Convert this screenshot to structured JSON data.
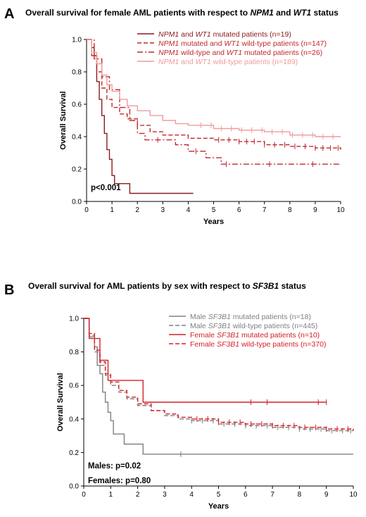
{
  "chart_data": [
    {
      "panel_label": "A",
      "type": "line",
      "step": true,
      "title_parts": [
        {
          "text": "Overall survival for female AML patients with respect to ",
          "italic": false
        },
        {
          "text": "NPM1",
          "italic": true
        },
        {
          "text": " and ",
          "italic": false
        },
        {
          "text": "WT1",
          "italic": true
        },
        {
          "text": " status",
          "italic": false
        }
      ],
      "xlabel": "Years",
      "ylabel": "Overall Survival",
      "xlim": [
        0,
        10
      ],
      "ylim": [
        0,
        1
      ],
      "xticks": [
        "0",
        "1",
        "2",
        "3",
        "4",
        "5",
        "6",
        "7",
        "8",
        "9",
        "10"
      ],
      "yticks": [
        "0.0",
        "0.2",
        "0.4",
        "0.6",
        "0.8",
        "1.0"
      ],
      "legend_position": "top-right",
      "annotations": [
        "p<0.001"
      ],
      "series": [
        {
          "legend_parts": [
            {
              "text": "NPM1",
              "italic": true
            },
            {
              "text": " and ",
              "italic": false
            },
            {
              "text": "WT1",
              "italic": true
            },
            {
              "text": " mutated patients (n=19)",
              "italic": false
            }
          ],
          "color": "#8b1a1a",
          "dash": "solid",
          "x": [
            0,
            0.2,
            0.3,
            0.4,
            0.5,
            0.6,
            0.7,
            0.8,
            0.9,
            1.0,
            1.1,
            1.3,
            1.7,
            2.4,
            2.5,
            4.2
          ],
          "y": [
            1.0,
            0.95,
            0.9,
            0.74,
            0.63,
            0.53,
            0.42,
            0.32,
            0.26,
            0.16,
            0.11,
            0.11,
            0.05,
            0.05,
            0.05,
            0.05
          ],
          "censor_x": []
        },
        {
          "legend_parts": [
            {
              "text": "NPM1",
              "italic": true
            },
            {
              "text": " mutated and ",
              "italic": false
            },
            {
              "text": "WT1",
              "italic": true
            },
            {
              "text": " wild-type patients (n=147)",
              "italic": false
            }
          ],
          "color": "#c0282d",
          "dash": "6,3",
          "x": [
            0,
            0.2,
            0.4,
            0.6,
            0.8,
            1.0,
            1.3,
            1.6,
            2.0,
            2.5,
            3.0,
            4.0,
            5.0,
            6.0,
            7.0,
            8.0,
            9.0,
            10.0
          ],
          "y": [
            1.0,
            0.9,
            0.8,
            0.7,
            0.63,
            0.58,
            0.54,
            0.51,
            0.47,
            0.43,
            0.41,
            0.39,
            0.38,
            0.37,
            0.35,
            0.34,
            0.33,
            0.32
          ],
          "censor_x": [
            5.2,
            5.6,
            6.0,
            6.3,
            6.6,
            7.0,
            7.4,
            7.8,
            8.2,
            8.6,
            9.0,
            9.3,
            9.6,
            9.9
          ]
        },
        {
          "legend_parts": [
            {
              "text": "NPM1",
              "italic": true
            },
            {
              "text": " wild-type and ",
              "italic": false
            },
            {
              "text": "WT1",
              "italic": true
            },
            {
              "text": " mutated patients (n=26)",
              "italic": false
            }
          ],
          "color": "#c0282d",
          "dash": "8,3,2,3",
          "x": [
            0,
            0.3,
            0.6,
            0.9,
            1.3,
            1.7,
            2.0,
            2.3,
            3.5,
            4.0,
            4.7,
            5.3,
            10.0
          ],
          "y": [
            1.0,
            0.88,
            0.77,
            0.69,
            0.58,
            0.5,
            0.42,
            0.38,
            0.35,
            0.31,
            0.27,
            0.23,
            0.23
          ],
          "censor_x": [
            2.8,
            4.3,
            5.5,
            7.2,
            8.9
          ]
        },
        {
          "legend_parts": [
            {
              "text": "NPM1",
              "italic": true
            },
            {
              "text": " and ",
              "italic": false
            },
            {
              "text": "WT1",
              "italic": true
            },
            {
              "text": " wild-type patients (n=189)",
              "italic": false
            }
          ],
          "color": "#f19a9a",
          "dash": "solid",
          "x": [
            0,
            0.2,
            0.4,
            0.6,
            0.8,
            1.0,
            1.3,
            1.6,
            2.0,
            2.5,
            3.0,
            3.5,
            4.0,
            5.0,
            6.0,
            7.0,
            8.0,
            9.0,
            10.0
          ],
          "y": [
            1.0,
            0.92,
            0.85,
            0.78,
            0.72,
            0.68,
            0.63,
            0.59,
            0.56,
            0.53,
            0.5,
            0.48,
            0.47,
            0.45,
            0.44,
            0.43,
            0.41,
            0.4,
            0.4
          ],
          "censor_x": [
            4.5,
            4.9,
            5.3,
            5.7,
            6.1,
            6.5,
            6.9,
            7.3,
            7.7,
            8.1,
            8.5,
            8.9,
            9.3,
            9.7
          ]
        }
      ]
    },
    {
      "panel_label": "B",
      "type": "line",
      "step": true,
      "title_parts": [
        {
          "text": "Overall survival for AML patients by sex with respect to ",
          "italic": false
        },
        {
          "text": "SF3B1",
          "italic": true
        },
        {
          "text": " status",
          "italic": false
        }
      ],
      "xlabel": "Years",
      "ylabel": "Overall Survival",
      "xlim": [
        0,
        10
      ],
      "ylim": [
        0,
        1
      ],
      "xticks": [
        "0",
        "1",
        "2",
        "3",
        "4",
        "5",
        "6",
        "7",
        "8",
        "9",
        "10"
      ],
      "yticks": [
        "0.0",
        "0.2",
        "0.4",
        "0.6",
        "0.8",
        "1.0"
      ],
      "legend_position": "top-right",
      "annotations": [
        "Males: p=0.02",
        "Females: p=0.80"
      ],
      "series": [
        {
          "legend_parts": [
            {
              "text": "Male ",
              "italic": false
            },
            {
              "text": "SF3B1",
              "italic": true
            },
            {
              "text": " mutated patients (n=18)",
              "italic": false
            }
          ],
          "color": "#808080",
          "dash": "solid",
          "x": [
            0,
            0.2,
            0.4,
            0.5,
            0.6,
            0.7,
            0.8,
            0.9,
            1.0,
            1.1,
            1.5,
            2.2,
            10.0
          ],
          "y": [
            1.0,
            0.89,
            0.83,
            0.72,
            0.67,
            0.56,
            0.5,
            0.44,
            0.39,
            0.31,
            0.25,
            0.19,
            0.19
          ],
          "censor_x": [
            3.6
          ]
        },
        {
          "legend_parts": [
            {
              "text": "Male ",
              "italic": false
            },
            {
              "text": "SF3B1",
              "italic": true
            },
            {
              "text": " wild-type patients (n=445)",
              "italic": false
            }
          ],
          "color": "#808080",
          "dash": "6,3",
          "x": [
            0,
            0.2,
            0.4,
            0.6,
            0.8,
            1.0,
            1.3,
            1.6,
            2.0,
            2.5,
            3.0,
            3.5,
            4.0,
            5.0,
            6.0,
            7.0,
            8.0,
            9.0,
            10.0
          ],
          "y": [
            1.0,
            0.9,
            0.8,
            0.72,
            0.66,
            0.6,
            0.56,
            0.52,
            0.48,
            0.45,
            0.42,
            0.4,
            0.39,
            0.37,
            0.36,
            0.35,
            0.34,
            0.33,
            0.33
          ],
          "censor_x": [
            4.0,
            4.4,
            4.8,
            5.2,
            5.6,
            6.0,
            6.4,
            6.8,
            7.2,
            7.6,
            8.0,
            8.4,
            8.8,
            9.2,
            9.6,
            9.9
          ]
        },
        {
          "legend_parts": [
            {
              "text": "Female ",
              "italic": false
            },
            {
              "text": "SF3B1",
              "italic": true
            },
            {
              "text": " mutated patients (n=10)",
              "italic": false
            }
          ],
          "color": "#d42027",
          "dash": "solid",
          "x": [
            0,
            0.2,
            0.6,
            0.9,
            1.0,
            2.2,
            9.0
          ],
          "y": [
            1.0,
            0.88,
            0.75,
            0.63,
            0.63,
            0.5,
            0.5
          ],
          "censor_x": [
            6.2,
            6.8,
            8.7,
            9.0
          ]
        },
        {
          "legend_parts": [
            {
              "text": "Female ",
              "italic": false
            },
            {
              "text": "SF3B1",
              "italic": true
            },
            {
              "text": " wild-type patients (n=370)",
              "italic": false
            }
          ],
          "color": "#d42027",
          "dash": "6,3",
          "x": [
            0,
            0.2,
            0.4,
            0.6,
            0.8,
            1.0,
            1.3,
            1.6,
            2.0,
            2.5,
            3.0,
            3.5,
            4.0,
            5.0,
            6.0,
            7.0,
            8.0,
            9.0,
            10.0
          ],
          "y": [
            1.0,
            0.91,
            0.81,
            0.74,
            0.67,
            0.62,
            0.57,
            0.53,
            0.49,
            0.45,
            0.43,
            0.41,
            0.4,
            0.38,
            0.37,
            0.36,
            0.35,
            0.34,
            0.33
          ],
          "censor_x": [
            4.2,
            4.6,
            5.0,
            5.4,
            5.8,
            6.2,
            6.6,
            7.0,
            7.4,
            7.8,
            8.2,
            8.6,
            9.0,
            9.4,
            9.8
          ]
        }
      ]
    }
  ]
}
